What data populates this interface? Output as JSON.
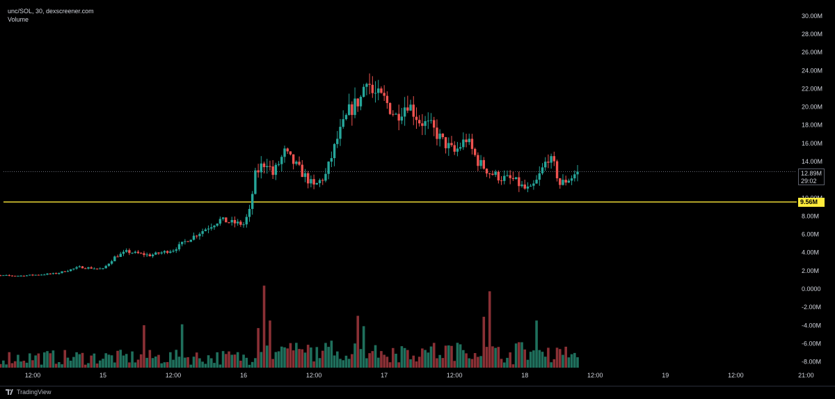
{
  "legend": {
    "pair": "unc/SOL, 30, dexscreener.com",
    "indicator": "Volume"
  },
  "footer": {
    "brand": "TradingView",
    "logo": "tradingview-logo-icon"
  },
  "colors": {
    "up": "#26a69a",
    "down": "#ef5350",
    "up_volume": "#1f6f5c",
    "down_volume": "#8a3035",
    "level_line": "#ffeb3b",
    "background": "#000000"
  },
  "price_labels": {
    "last": "12.89M",
    "countdown": "29:02",
    "level": "9.56M"
  },
  "chart_data": {
    "type": "candlestick",
    "title": "",
    "y_ticks": [
      "30.00M",
      "28.00M",
      "26.00M",
      "24.00M",
      "22.00M",
      "20.00M",
      "18.00M",
      "16.00M",
      "14.00M",
      "12.00M",
      "10.00M",
      "8.00M",
      "6.00M",
      "4.00M",
      "2.00M",
      "0.0000",
      "-2.00M",
      "-4.00M",
      "-6.00M",
      "-8.00M"
    ],
    "y_tick_values": [
      30,
      28,
      26,
      24,
      22,
      20,
      18,
      16,
      14,
      12,
      10,
      8,
      6,
      4,
      2,
      0,
      -2,
      -4,
      -6,
      -8
    ],
    "ylim": [
      -8.5,
      30.5
    ],
    "x_ticks": [
      "12:00",
      "15",
      "12:00",
      "16",
      "12:00",
      "17",
      "12:00",
      "18",
      "12:00",
      "19",
      "12:00",
      "21:00"
    ],
    "x_tick_hours": [
      -12,
      0,
      12,
      24,
      36,
      48,
      60,
      72,
      84,
      96,
      108,
      120
    ],
    "x_range_hours": [
      -20.5,
      121
    ],
    "last_price": 12.89,
    "horizontal_level": 9.56,
    "volume_scale_max": 9.6,
    "anchors": [
      {
        "t": -20.5,
        "p": 1.5
      },
      {
        "t": -14,
        "p": 1.45
      },
      {
        "t": -8,
        "p": 1.7
      },
      {
        "t": -4,
        "p": 2.4
      },
      {
        "t": 0,
        "p": 2.2
      },
      {
        "t": 2,
        "p": 3.5
      },
      {
        "t": 4,
        "p": 4.1
      },
      {
        "t": 8,
        "p": 3.7
      },
      {
        "t": 12,
        "p": 4.3
      },
      {
        "t": 14,
        "p": 5.2
      },
      {
        "t": 16,
        "p": 6.0
      },
      {
        "t": 18,
        "p": 6.8
      },
      {
        "t": 20,
        "p": 7.6
      },
      {
        "t": 22,
        "p": 7.3
      },
      {
        "t": 24,
        "p": 7.1
      },
      {
        "t": 25,
        "p": 8.5
      },
      {
        "t": 26,
        "p": 12.5
      },
      {
        "t": 27,
        "p": 13.5
      },
      {
        "t": 28,
        "p": 14.0
      },
      {
        "t": 29,
        "p": 12.6
      },
      {
        "t": 31,
        "p": 15.0
      },
      {
        "t": 33,
        "p": 13.5
      },
      {
        "t": 35,
        "p": 12.0
      },
      {
        "t": 36,
        "p": 11.2
      },
      {
        "t": 38,
        "p": 12.5
      },
      {
        "t": 40,
        "p": 16.5
      },
      {
        "t": 42,
        "p": 19.5
      },
      {
        "t": 44,
        "p": 21.0
      },
      {
        "t": 45,
        "p": 23.5
      },
      {
        "t": 46,
        "p": 21.5
      },
      {
        "t": 48,
        "p": 20.8
      },
      {
        "t": 50,
        "p": 19.0
      },
      {
        "t": 52,
        "p": 20.5
      },
      {
        "t": 54,
        "p": 18.5
      },
      {
        "t": 56,
        "p": 17.8
      },
      {
        "t": 58,
        "p": 16.2
      },
      {
        "t": 60,
        "p": 15.0
      },
      {
        "t": 62,
        "p": 16.5
      },
      {
        "t": 64,
        "p": 14.0
      },
      {
        "t": 66,
        "p": 12.8
      },
      {
        "t": 68,
        "p": 12.2
      },
      {
        "t": 70,
        "p": 12.0
      },
      {
        "t": 72,
        "p": 11.0
      },
      {
        "t": 73,
        "p": 10.9
      },
      {
        "t": 74,
        "p": 11.8
      },
      {
        "t": 76,
        "p": 14.5
      },
      {
        "t": 77,
        "p": 13.5
      },
      {
        "t": 78,
        "p": 11.5
      },
      {
        "t": 80,
        "p": 12.3
      },
      {
        "t": 81,
        "p": 12.89
      }
    ],
    "volume_spikes": [
      {
        "t": 7,
        "v": 4.5
      },
      {
        "t": 13.5,
        "v": 4.6
      },
      {
        "t": 26.5,
        "v": 4.2
      },
      {
        "t": 27.5,
        "v": 8.7
      },
      {
        "t": 28.5,
        "v": 5.0
      },
      {
        "t": 43.5,
        "v": 5.5
      },
      {
        "t": 44.5,
        "v": 4.4
      },
      {
        "t": 65,
        "v": 5.4
      },
      {
        "t": 66,
        "v": 8.1
      },
      {
        "t": 74,
        "v": 5.0
      }
    ]
  }
}
